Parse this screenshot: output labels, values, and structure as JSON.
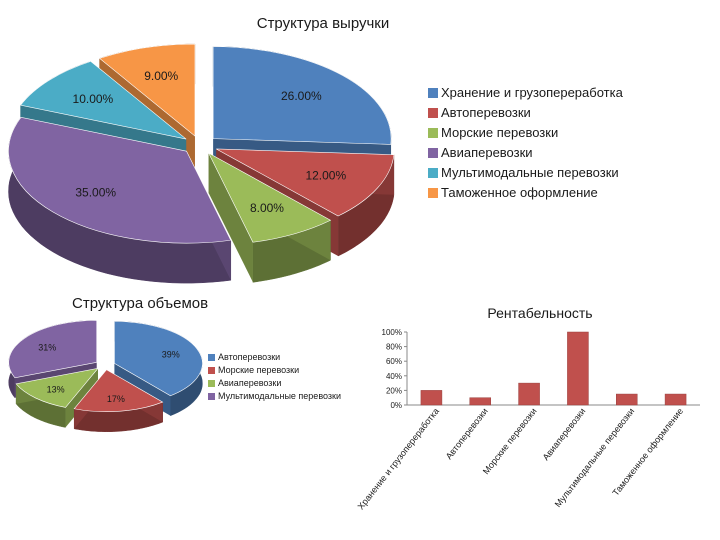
{
  "chart_data": [
    {
      "type": "pie",
      "title": "Структура выручки",
      "categories": [
        "Хранение и грузопереработка",
        "Автоперевозки",
        "Морские перевозки",
        "Авиаперевозки",
        "Мультимодальные перевозки",
        "Таможенное оформление"
      ],
      "values": [
        26,
        12,
        8,
        35,
        10,
        9
      ],
      "labels": [
        "26.00%",
        "12.00%",
        "8.00%",
        "35.00%",
        "10.00%",
        "9.00%"
      ],
      "colors": [
        "#4f81bd",
        "#c0504d",
        "#9bbb59",
        "#8064a2",
        "#4bacc6",
        "#f79646"
      ],
      "legend": "right"
    },
    {
      "type": "pie",
      "title": "Структура объемов",
      "categories": [
        "Автоперевозки",
        "Морские перевозки",
        "Авиаперевозки",
        "Мультимодальные перевозки"
      ],
      "values": [
        39,
        17,
        13,
        31
      ],
      "labels": [
        "39%",
        "17%",
        "13%",
        "31%"
      ],
      "colors": [
        "#4f81bd",
        "#c0504d",
        "#9bbb59",
        "#8064a2"
      ],
      "legend": "right"
    },
    {
      "type": "bar",
      "title": "Рентабельность",
      "categories": [
        "Хранение и грузопереработка",
        "Автоперевозки",
        "Морские перевозки",
        "Авиаперевозки",
        "Мультимодальные перевозки",
        "Таможенное оформление"
      ],
      "values": [
        20,
        10,
        30,
        100,
        15,
        15
      ],
      "ylim": [
        0,
        100
      ],
      "ytick_labels": [
        "0%",
        "20%",
        "40%",
        "60%",
        "80%",
        "100%"
      ],
      "color": "#c0504d",
      "grid": false
    }
  ]
}
